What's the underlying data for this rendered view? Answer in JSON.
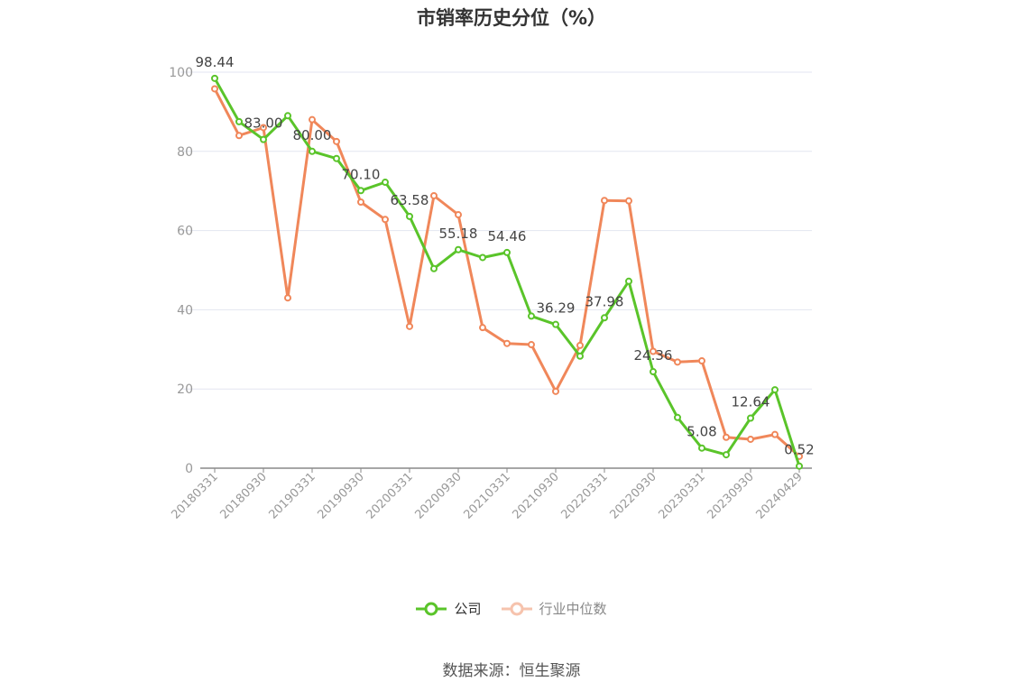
{
  "chart_data": {
    "type": "line",
    "title": "市销率历史分位（%）",
    "ylim": [
      0,
      100
    ],
    "yticks": [
      "0",
      "20",
      "40",
      "60",
      "80",
      "100"
    ],
    "xtick_labels": [
      "20180331",
      "20180930",
      "20190331",
      "20190930",
      "20200331",
      "20200930",
      "20210331",
      "20210930",
      "20220331",
      "20220930",
      "20230331",
      "20230930",
      "20240429"
    ],
    "point_count": 25,
    "grid": true,
    "legend_position": "bottom",
    "series": [
      {
        "name": "公司",
        "color": "#5ac42a",
        "values": [
          98.44,
          87.5,
          83.0,
          89.0,
          80.0,
          78.2,
          70.1,
          72.2,
          63.58,
          50.4,
          55.18,
          53.2,
          54.46,
          38.4,
          36.29,
          28.3,
          37.98,
          47.2,
          24.36,
          12.8,
          5.08,
          3.4,
          12.64,
          19.8,
          0.52
        ],
        "data_labels": {
          "0": "98.44",
          "2": "83.00",
          "4": "80.00",
          "6": "70.10",
          "8": "63.58",
          "10": "55.18",
          "12": "54.46",
          "14": "36.29",
          "16": "37.98",
          "18": "24.36",
          "20": "5.08",
          "22": "12.64",
          "24": "0.52"
        }
      },
      {
        "name": "行业中位数",
        "color": "#f0875a",
        "values": [
          95.8,
          84.0,
          86.0,
          43.0,
          88.0,
          82.5,
          67.2,
          62.8,
          35.8,
          68.8,
          64.0,
          35.5,
          31.5,
          31.2,
          19.4,
          31.0,
          67.6,
          67.5,
          29.5,
          26.8,
          27.1,
          7.8,
          7.3,
          8.5,
          3.0
        ]
      }
    ]
  },
  "legend": {
    "company_label": "公司",
    "industry_label": "行业中位数"
  },
  "source": "数据来源：恒生聚源"
}
